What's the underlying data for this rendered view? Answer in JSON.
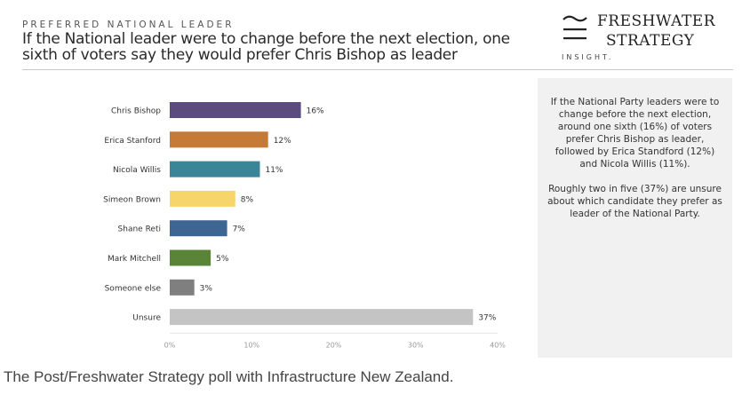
{
  "header": {
    "kicker": "PREFERRED NATIONAL LEADER",
    "title": "If the National leader were to change before the next election, one sixth of voters say they would prefer Chris Bishop as leader"
  },
  "logo": {
    "brand_line1": "FRESHWATER",
    "brand_line2": "STRATEGY",
    "tagline": "INSIGHT.",
    "icon": "wave-equals-icon"
  },
  "panel": {
    "paragraph1": "If the National Party leaders were to change before the next election, around one sixth (16%) of voters prefer Chris Bishop as leader, followed by Erica Standford (12%) and Nicola Willis (11%).",
    "paragraph2": "Roughly two in five (37%) are unsure about which candidate they prefer as leader of the National Party."
  },
  "caption": "The Post/Freshwater Strategy poll with Infrastructure New Zealand.",
  "chart_data": {
    "type": "bar",
    "orientation": "horizontal",
    "title": "If the National leader were to change before the next election, one sixth of voters say they would prefer Chris Bishop as leader",
    "xlabel": "",
    "ylabel": "",
    "categories": [
      "Chris Bishop",
      "Erica Stanford",
      "Nicola Willis",
      "Simeon Brown",
      "Shane Reti",
      "Mark Mitchell",
      "Someone else",
      "Unsure"
    ],
    "values": [
      16,
      12,
      11,
      8,
      7,
      5,
      3,
      37
    ],
    "value_labels": [
      "16%",
      "12%",
      "11%",
      "8%",
      "7%",
      "5%",
      "3%",
      "37%"
    ],
    "colors": [
      "#5b4a7f",
      "#c57a37",
      "#3b8598",
      "#f6d56a",
      "#3f6592",
      "#5a8539",
      "#7f7f7f",
      "#c4c4c4"
    ],
    "xlim": [
      0,
      40
    ],
    "xticks": [
      0,
      10,
      20,
      30,
      40
    ],
    "xtick_labels": [
      "0%",
      "10%",
      "20%",
      "30%",
      "40%"
    ],
    "grid": false,
    "legend": "none"
  }
}
